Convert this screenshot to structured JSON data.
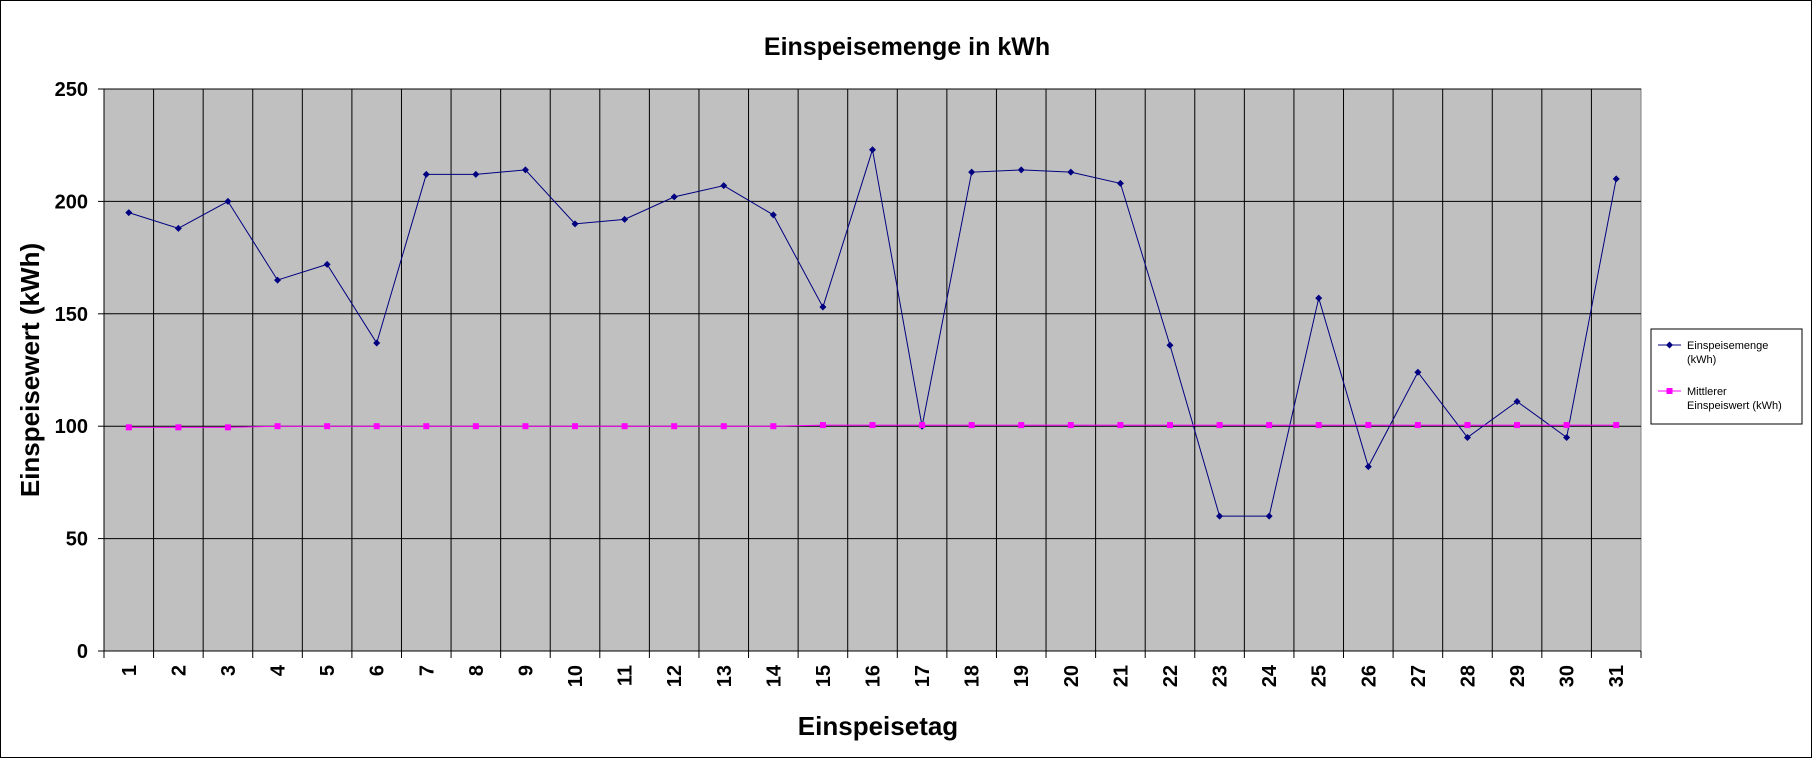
{
  "chart_data": {
    "type": "line",
    "title": "Einspeisemenge in kWh",
    "xlabel": "Einspeisetag",
    "ylabel": "Einspeisewert  (kWh)",
    "categories": [
      "1",
      "2",
      "3",
      "4",
      "5",
      "6",
      "7",
      "8",
      "9",
      "10",
      "11",
      "12",
      "13",
      "14",
      "15",
      "16",
      "17",
      "18",
      "19",
      "20",
      "21",
      "22",
      "23",
      "24",
      "25",
      "26",
      "27",
      "28",
      "29",
      "30",
      "31"
    ],
    "ylim": [
      0,
      250
    ],
    "yticks": [
      0,
      50,
      100,
      150,
      200,
      250
    ],
    "grid": true,
    "legend_position": "right",
    "plot_background": "#c0c0c0",
    "series": [
      {
        "name": "Einspeisemenge (kWh)",
        "legend_lines": [
          "Einspeisemenge",
          "(kWh)"
        ],
        "color": "#000080",
        "marker": "diamond",
        "values": [
          195,
          188,
          200,
          165,
          172,
          137,
          212,
          212,
          214,
          190,
          192,
          202,
          207,
          194,
          153,
          223,
          100,
          213,
          214,
          213,
          208,
          136,
          60,
          60,
          157,
          82,
          124,
          95,
          111,
          95,
          210
        ]
      },
      {
        "name": "Mittlerer Einspeiswert (kWh)",
        "legend_lines": [
          "Mittlerer",
          "Einspeiswert (kWh)"
        ],
        "color": "#ff00ff",
        "marker": "square",
        "values": [
          99.5,
          99.5,
          99.5,
          100,
          100,
          100,
          100,
          100,
          100,
          100,
          100,
          100,
          100,
          100,
          100.5,
          100.5,
          100.5,
          100.5,
          100.5,
          100.5,
          100.5,
          100.5,
          100.5,
          100.5,
          100.5,
          100.5,
          100.5,
          100.5,
          100.5,
          100.5,
          100.5
        ]
      }
    ]
  }
}
